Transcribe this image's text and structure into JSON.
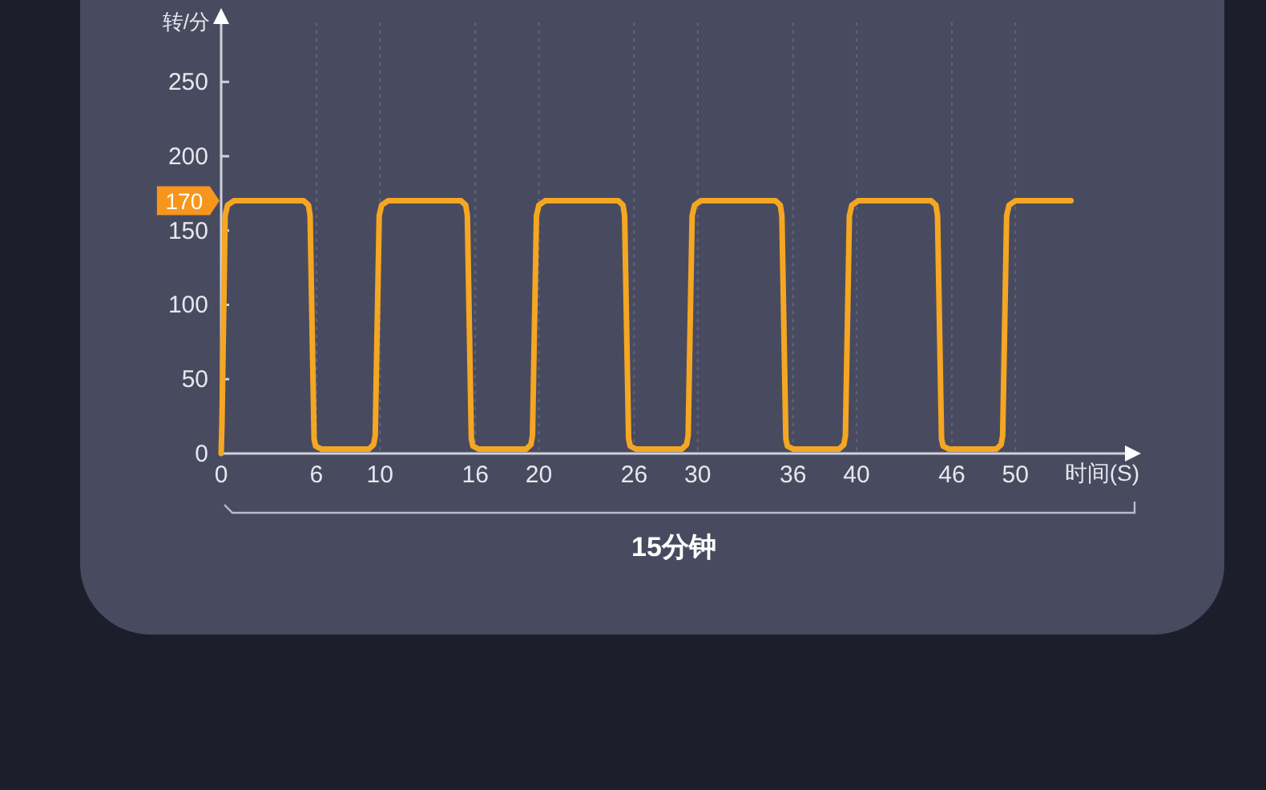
{
  "chart_data": {
    "type": "line",
    "ylabel": "转/分",
    "xlabel": "时间(S)",
    "x": [
      0,
      0.05,
      0.25,
      0.4,
      0.8,
      5.2,
      5.5,
      5.6,
      5.85,
      5.95,
      6.3,
      9.3,
      9.6,
      9.7,
      9.95,
      10.1,
      10.5,
      15.1,
      15.4,
      15.5,
      15.75,
      15.85,
      16.2,
      19.2,
      19.5,
      19.6,
      19.85,
      20.0,
      20.4,
      25.0,
      25.3,
      25.4,
      25.65,
      25.75,
      26.1,
      29.0,
      29.3,
      29.4,
      29.65,
      29.8,
      30.2,
      34.9,
      35.2,
      35.3,
      35.55,
      35.65,
      36.0,
      38.9,
      39.2,
      39.3,
      39.55,
      39.7,
      40.1,
      44.7,
      45.0,
      45.1,
      45.35,
      45.45,
      45.8,
      48.8,
      49.1,
      49.2,
      49.45,
      49.6,
      50.0,
      53.5
    ],
    "series": [
      {
        "color": "#f5a623",
        "values": [
          0,
          20,
          160,
          167,
          170,
          170,
          167,
          160,
          10,
          5,
          3,
          3,
          6,
          12,
          160,
          167,
          170,
          170,
          167,
          160,
          10,
          5,
          3,
          3,
          6,
          12,
          160,
          167,
          170,
          170,
          167,
          160,
          10,
          5,
          3,
          3,
          6,
          12,
          160,
          167,
          170,
          170,
          167,
          160,
          10,
          5,
          3,
          3,
          6,
          12,
          160,
          167,
          170,
          170,
          167,
          160,
          10,
          5,
          3,
          3,
          6,
          12,
          160,
          167,
          170,
          170
        ],
        "value_labels": [
          null,
          null,
          null,
          null,
          "170",
          null,
          null,
          null,
          null,
          null,
          null,
          null,
          null,
          null,
          null,
          null,
          null,
          null,
          null,
          null,
          null,
          null,
          null,
          null,
          null,
          null,
          null,
          null,
          null,
          null,
          null,
          null,
          null,
          null,
          null,
          null,
          null,
          null,
          null,
          null,
          null,
          null,
          null,
          null,
          null,
          null,
          null,
          null,
          null,
          null,
          null,
          null,
          null,
          null,
          null,
          null,
          null,
          null,
          null,
          null,
          null,
          null,
          null,
          null,
          null,
          null
        ]
      }
    ],
    "xlim": [
      0,
      57
    ],
    "xticks": [
      0,
      6,
      10,
      16,
      20,
      26,
      30,
      36,
      40,
      46,
      50
    ],
    "ylim": [
      0,
      290
    ],
    "yticks": [
      0,
      50,
      100,
      150,
      200,
      250
    ],
    "grid": "x",
    "line_style": "solid",
    "annotations": [
      "15分钟"
    ]
  }
}
